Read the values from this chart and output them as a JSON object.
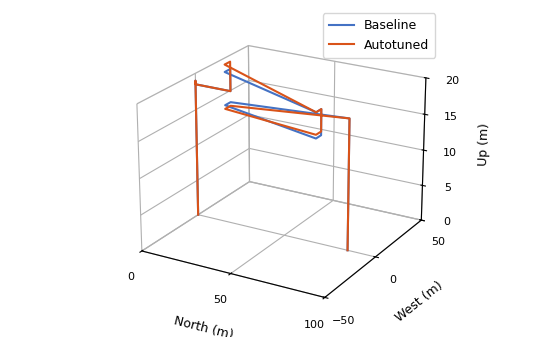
{
  "xlabel": "North (m)",
  "ylabel": "West (m)",
  "zlabel": "Up (m)",
  "baseline_color": "#4472C4",
  "autotuned_color": "#D95319",
  "lw": 1.5,
  "legend_labels": [
    "Baseline",
    "Autotuned"
  ],
  "xlim": [
    0,
    100
  ],
  "ylim": [
    -50,
    50
  ],
  "zlim": [
    0,
    20
  ],
  "xticks": [
    0,
    50,
    100
  ],
  "yticks": [
    -50,
    0,
    50
  ],
  "zticks": [
    0,
    5,
    10,
    15,
    20
  ],
  "elev": 22,
  "azim": -60,
  "baseline_north": [
    0,
    0,
    0,
    0,
    0,
    0,
    0,
    0,
    20,
    20,
    20,
    70,
    70,
    70,
    70,
    20,
    20,
    85,
    85,
    85,
    85
  ],
  "baseline_west": [
    0,
    0,
    0,
    0,
    0,
    0,
    0,
    0,
    0,
    0,
    -5,
    -5,
    0,
    0,
    -5,
    -5,
    0,
    0,
    0,
    0,
    0
  ],
  "baseline_up": [
    0,
    3,
    7,
    12,
    18,
    19,
    18.5,
    18.5,
    18.5,
    21.5,
    21.5,
    18.5,
    18.5,
    15,
    15,
    17,
    17,
    18,
    18,
    5,
    0
  ],
  "autotuned_north": [
    0,
    0,
    0,
    0,
    0,
    0,
    0,
    0,
    20,
    20,
    20,
    70,
    70,
    70,
    70,
    20,
    20,
    85,
    85,
    85,
    85
  ],
  "autotuned_west": [
    0,
    0,
    0,
    0,
    0,
    0,
    0,
    0,
    0,
    0,
    -5,
    -5,
    0,
    0,
    -5,
    -5,
    0,
    0,
    0,
    0,
    0
  ],
  "autotuned_up": [
    0,
    3,
    7,
    12,
    18,
    19,
    18.5,
    18.5,
    18.5,
    22.5,
    22.5,
    18.5,
    18.5,
    15.5,
    15.5,
    16.5,
    16.5,
    18,
    18,
    5,
    0
  ]
}
